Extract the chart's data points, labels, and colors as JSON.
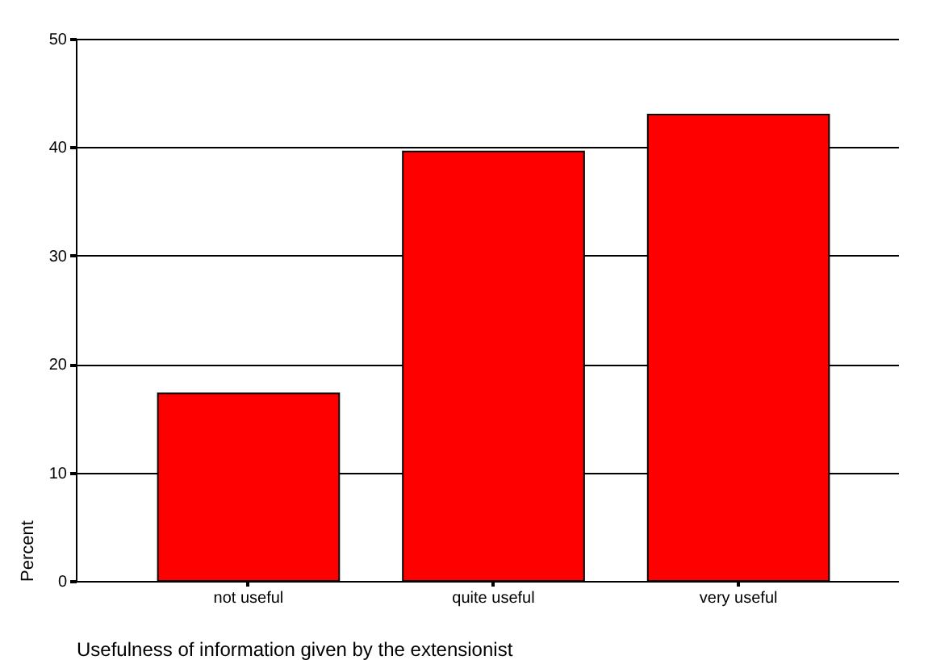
{
  "chart_data": {
    "type": "bar",
    "categories": [
      "not useful",
      "quite useful",
      "very useful"
    ],
    "values": [
      17.3,
      39.6,
      43.0
    ],
    "color": "#ff0000",
    "xlabel": "Usefulness of  information given by the extensionist",
    "ylabel": "Percent",
    "ylim": [
      0,
      50
    ],
    "yticks": [
      0,
      10,
      20,
      30,
      40,
      50
    ],
    "grid": "y"
  }
}
